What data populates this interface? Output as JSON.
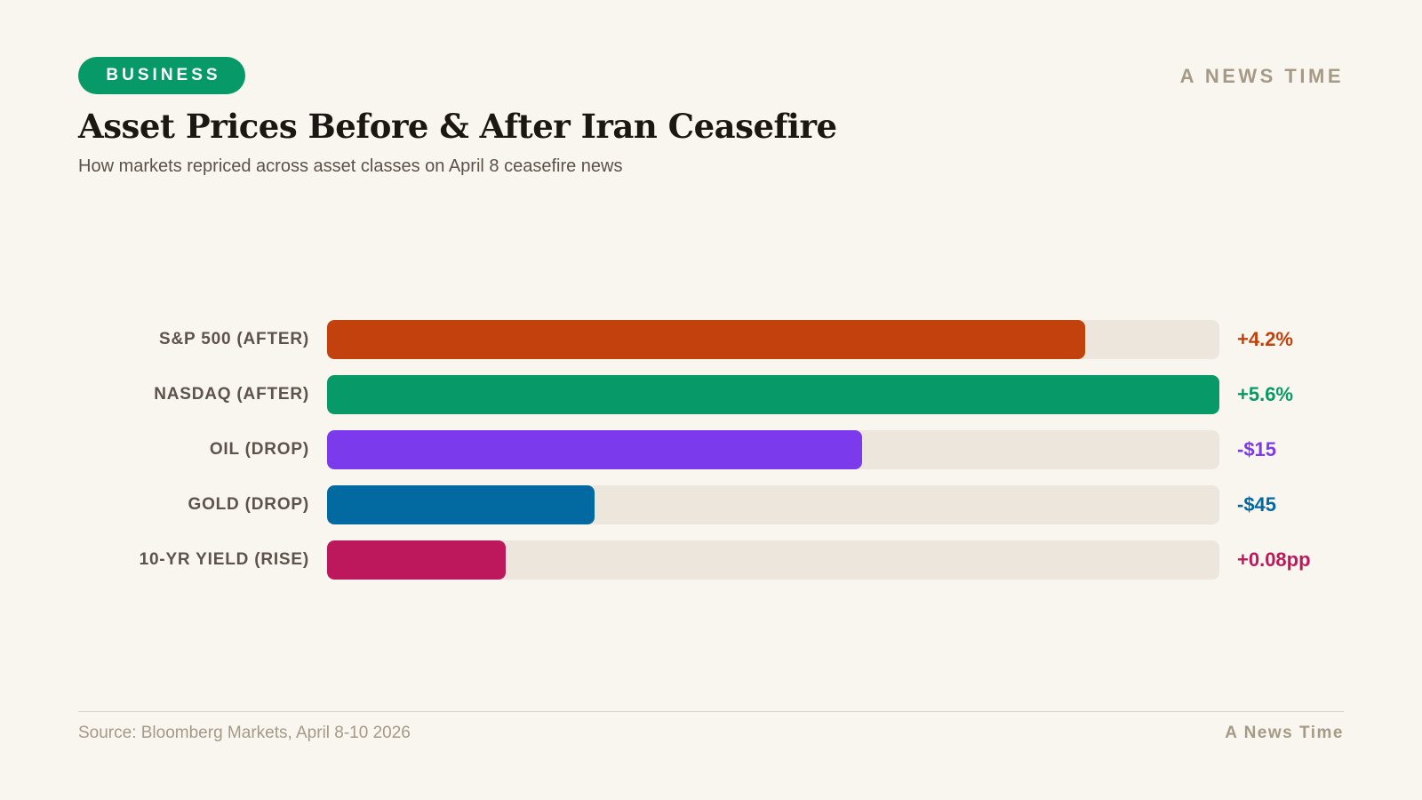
{
  "header": {
    "badge": "BUSINESS",
    "brand": "A NEWS TIME",
    "title": "Asset Prices Before & After Iran Ceasefire",
    "subtitle": "How markets repriced across asset classes on April 8 ceasefire news"
  },
  "footer": {
    "source": "Source: Bloomberg Markets, April 8-10 2026",
    "brand": "A News Time"
  },
  "colors": {
    "background": "#f9f5ef",
    "badge": "#079968",
    "track": "#ede6dc"
  },
  "chart_data": {
    "type": "bar",
    "orientation": "horizontal",
    "title": "Asset Prices Before & After Iran Ceasefire",
    "grid": false,
    "legend": "none",
    "xlim": [
      0,
      100
    ],
    "categories": [
      "S&P 500 (AFTER)",
      "NASDAQ (AFTER)",
      "OIL (DROP)",
      "GOLD (DROP)",
      "10-YR YIELD (RISE)"
    ],
    "values": [
      85,
      100,
      60,
      30,
      20
    ],
    "labels": [
      "+4.2%",
      "+5.6%",
      "-$15",
      "-$45",
      "+0.08pp"
    ],
    "bar_colors": [
      "#c2410c",
      "#079968",
      "#7c3aed",
      "#0369a1",
      "#be185d"
    ]
  }
}
